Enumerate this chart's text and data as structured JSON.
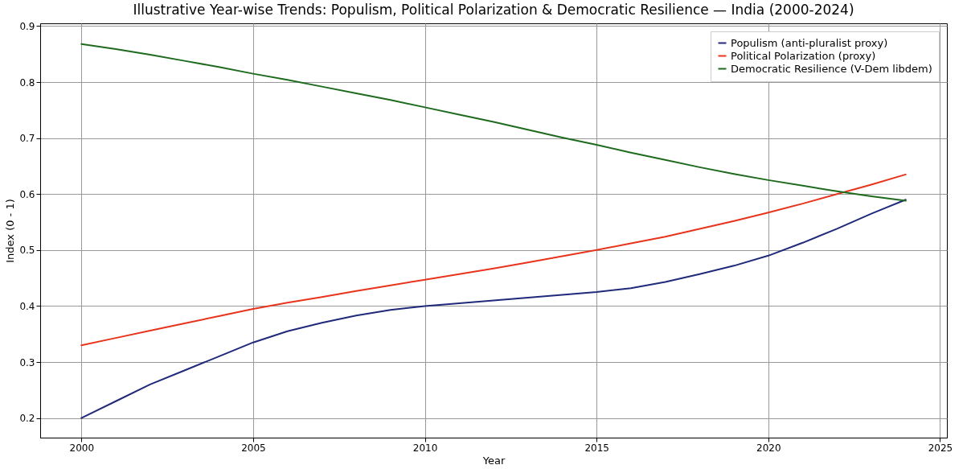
{
  "chart_data": {
    "type": "line",
    "title": "Illustrative Year-wise Trends: Populism, Political Polarization & Democratic Resilience — India (2000-2024)",
    "xlabel": "Year",
    "ylabel": "Index (0 - 1)",
    "x": [
      2000,
      2001,
      2002,
      2003,
      2004,
      2005,
      2006,
      2007,
      2008,
      2009,
      2010,
      2011,
      2012,
      2013,
      2014,
      2015,
      2016,
      2017,
      2018,
      2019,
      2020,
      2021,
      2022,
      2023,
      2024
    ],
    "series": [
      {
        "name": "Populism (anti-pluralist proxy)",
        "color": "#1f2a7a",
        "values": [
          0.2,
          0.23,
          0.26,
          0.285,
          0.31,
          0.335,
          0.355,
          0.37,
          0.383,
          0.393,
          0.4,
          0.405,
          0.41,
          0.415,
          0.42,
          0.425,
          0.432,
          0.443,
          0.457,
          0.472,
          0.49,
          0.513,
          0.538,
          0.565,
          0.59
        ]
      },
      {
        "name": "Political Polarization (proxy)",
        "color": "#e8341c",
        "values": [
          0.33,
          0.343,
          0.356,
          0.369,
          0.382,
          0.395,
          0.406,
          0.416,
          0.427,
          0.437,
          0.447,
          0.457,
          0.467,
          0.478,
          0.489,
          0.5,
          0.512,
          0.524,
          0.538,
          0.552,
          0.567,
          0.583,
          0.6,
          0.617,
          0.635
        ]
      },
      {
        "name": "Democratic Resilience (V-Dem libdem)",
        "color": "#1e6b1e",
        "values": [
          0.868,
          0.859,
          0.849,
          0.838,
          0.827,
          0.815,
          0.804,
          0.792,
          0.78,
          0.768,
          0.755,
          0.742,
          0.729,
          0.715,
          0.701,
          0.688,
          0.674,
          0.661,
          0.648,
          0.636,
          0.625,
          0.615,
          0.605,
          0.596,
          0.588
        ]
      }
    ],
    "xlim": [
      1998.8,
      2025.2
    ],
    "xticks": [
      2000,
      2005,
      2010,
      2015,
      2020,
      2025
    ],
    "ylim": [
      0.165,
      0.905
    ],
    "yticks": [
      0.2,
      0.3,
      0.4,
      0.5,
      0.6,
      0.7,
      0.8,
      0.9
    ],
    "grid": true,
    "legend": "top right",
    "marker": "none",
    "line_style": "solid"
  }
}
